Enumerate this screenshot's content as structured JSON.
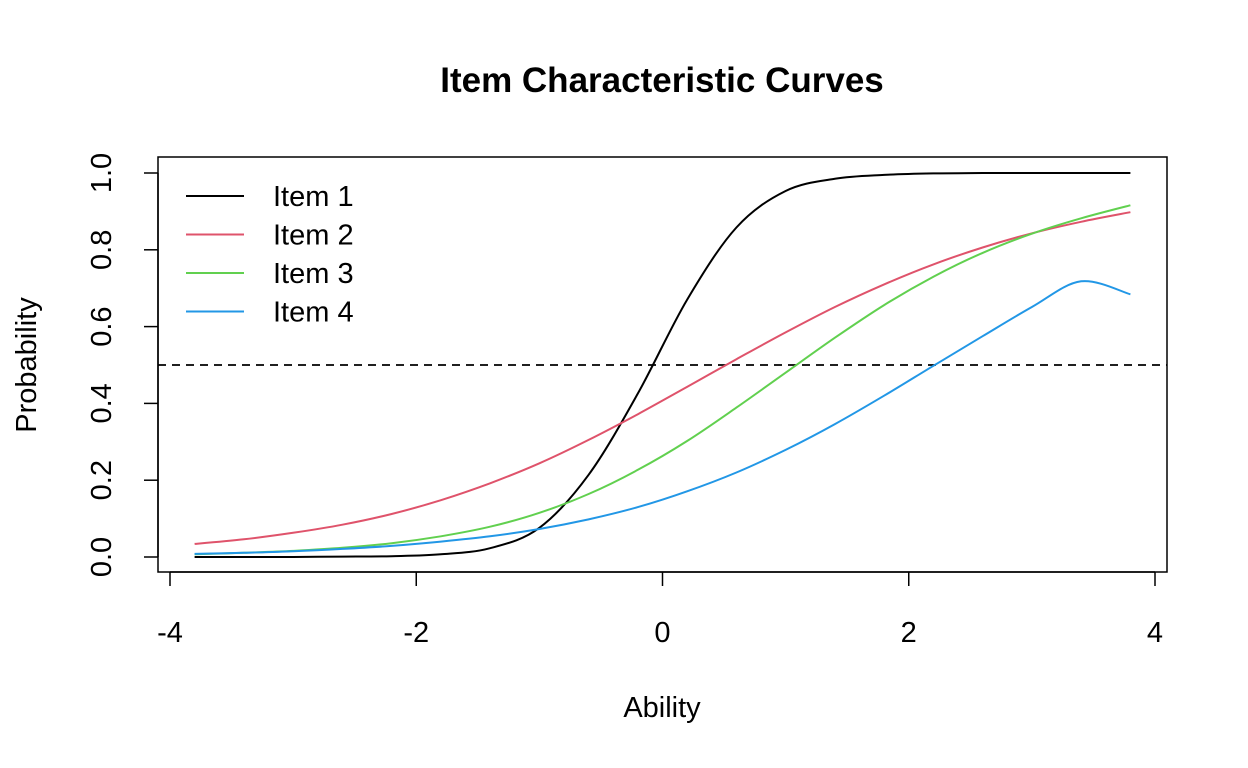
{
  "chart_data": {
    "type": "line",
    "title": "Item Characteristic Curves",
    "xlabel": "Ability",
    "ylabel": "Probability",
    "xlim": [
      -3.8,
      3.8
    ],
    "ylim": [
      0,
      1
    ],
    "x_ticks": [
      -4,
      -2,
      0,
      2,
      4
    ],
    "x_tick_labels": [
      "-4",
      "-2",
      "0",
      "2",
      "4"
    ],
    "y_ticks": [
      0,
      0.2,
      0.4,
      0.6,
      0.8,
      1
    ],
    "y_tick_labels": [
      "0.0",
      "0.2",
      "0.4",
      "0.6",
      "0.8",
      "1.0"
    ],
    "grid": false,
    "legend_position": "top-left",
    "reference_line": {
      "y": 0.5,
      "style": "dashed",
      "color": "#000000"
    },
    "x": [
      -3.8,
      -3.4,
      -3.0,
      -2.6,
      -2.2,
      -1.8,
      -1.4,
      -1.0,
      -0.6,
      -0.2,
      0.2,
      0.6,
      1.0,
      1.4,
      1.8,
      2.2,
      2.6,
      3.0,
      3.4,
      3.8
    ],
    "series": [
      {
        "name": "Item 1",
        "color": "#000000",
        "values": [
          0.0,
          0.0,
          0.0,
          0.001,
          0.002,
          0.007,
          0.023,
          0.076,
          0.214,
          0.426,
          0.67,
          0.858,
          0.953,
          0.985,
          0.995,
          0.999,
          1.0,
          1.0,
          1.0,
          1.0
        ]
      },
      {
        "name": "Item 2",
        "color": "#DF536B",
        "values": [
          0.034,
          0.046,
          0.063,
          0.084,
          0.112,
          0.148,
          0.192,
          0.244,
          0.305,
          0.372,
          0.443,
          0.515,
          0.585,
          0.651,
          0.71,
          0.762,
          0.806,
          0.843,
          0.873,
          0.898
        ]
      },
      {
        "name": "Item 3",
        "color": "#61D04F",
        "values": [
          0.007,
          0.011,
          0.016,
          0.024,
          0.036,
          0.054,
          0.079,
          0.115,
          0.164,
          0.227,
          0.302,
          0.389,
          0.48,
          0.571,
          0.656,
          0.73,
          0.792,
          0.842,
          0.882,
          0.916
        ]
      },
      {
        "name": "Item 4",
        "color": "#2297E6",
        "values": [
          0.008,
          0.011,
          0.015,
          0.021,
          0.029,
          0.04,
          0.054,
          0.073,
          0.098,
          0.13,
          0.171,
          0.22,
          0.279,
          0.346,
          0.42,
          0.498,
          0.575,
          0.651,
          0.718,
          0.684
        ]
      }
    ]
  }
}
